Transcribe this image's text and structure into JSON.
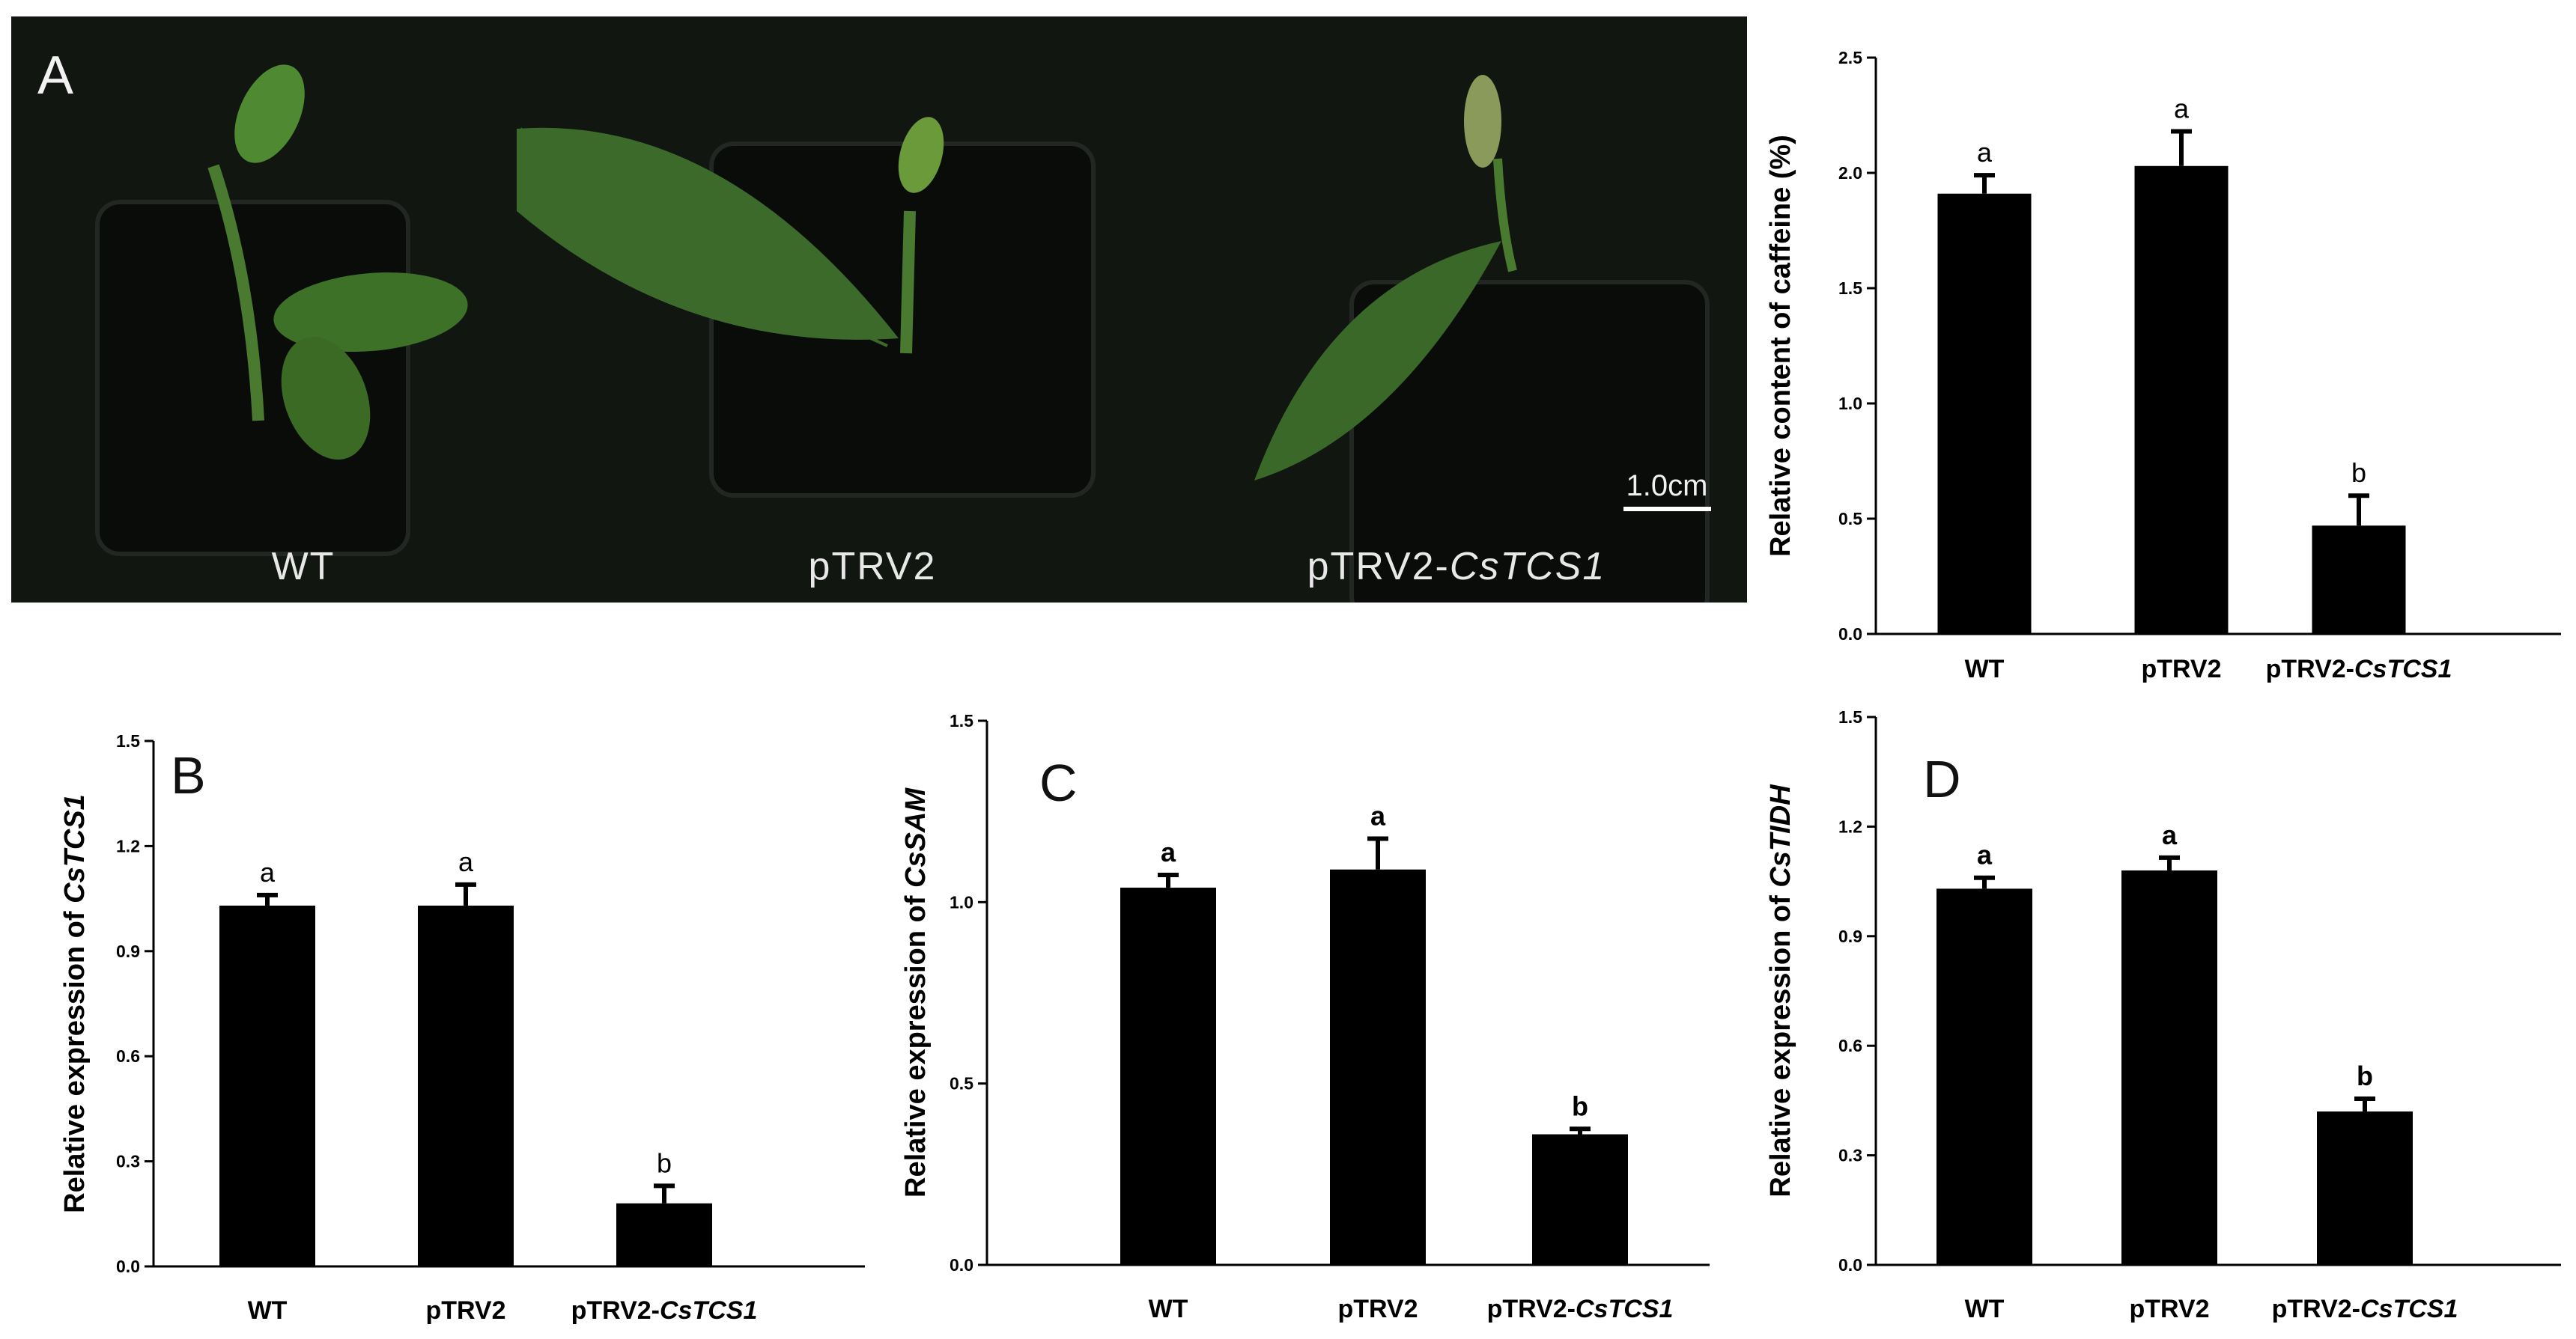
{
  "photo": {
    "letter": "A",
    "scale_bar": "1.0cm",
    "labels": [
      {
        "prefix": "WT",
        "italic": ""
      },
      {
        "prefix": "pTRV2",
        "italic": ""
      },
      {
        "prefix": "pTRV2-",
        "italic": "CsTCS1"
      }
    ]
  },
  "colors": {
    "bar": "#000000",
    "photo_bg": "#111611",
    "leaf": "#3c6a2a"
  },
  "chart_data": [
    {
      "type": "bar",
      "letter": "",
      "ylabel": {
        "prefix": "Relative content of caffeine (%)",
        "italic": ""
      },
      "categories": [
        {
          "prefix": "WT",
          "italic": ""
        },
        {
          "prefix": "pTRV2",
          "italic": ""
        },
        {
          "prefix": "pTRV2-",
          "italic": "CsTCS1"
        }
      ],
      "values": [
        1.91,
        2.03,
        0.47
      ],
      "errors": [
        0.08,
        0.15,
        0.13
      ],
      "sig": [
        "a",
        "a",
        "b"
      ],
      "sig_bold": false,
      "ylim": [
        0,
        2.5
      ],
      "ticks": [
        "0.0",
        "0.5",
        "1.0",
        "1.5",
        "2.0",
        "2.5"
      ]
    },
    {
      "type": "bar",
      "letter": "B",
      "ylabel": {
        "prefix": "Relative expression of ",
        "italic": "CsTCS1"
      },
      "categories": [
        {
          "prefix": "WT",
          "italic": ""
        },
        {
          "prefix": "pTRV2",
          "italic": ""
        },
        {
          "prefix": "pTRV2-",
          "italic": "CsTCS1"
        }
      ],
      "values": [
        1.03,
        1.03,
        0.18
      ],
      "errors": [
        0.03,
        0.06,
        0.05
      ],
      "sig": [
        "a",
        "a",
        "b"
      ],
      "sig_bold": false,
      "ylim": [
        0,
        1.5
      ],
      "ticks": [
        "0.0",
        "0.3",
        "0.6",
        "0.9",
        "1.2",
        "1.5"
      ]
    },
    {
      "type": "bar",
      "letter": "C",
      "ylabel": {
        "prefix": "Relative expression of ",
        "italic": "CsSAM"
      },
      "categories": [
        {
          "prefix": "WT",
          "italic": ""
        },
        {
          "prefix": "pTRV2",
          "italic": ""
        },
        {
          "prefix": "pTRV2-",
          "italic": "CsTCS1"
        }
      ],
      "values": [
        1.04,
        1.09,
        0.36
      ],
      "errors": [
        0.035,
        0.085,
        0.015
      ],
      "sig": [
        "a",
        "a",
        "b"
      ],
      "sig_bold": true,
      "ylim": [
        0,
        1.5
      ],
      "ticks": [
        "0.0",
        "0.5",
        "1.0",
        "1.5"
      ]
    },
    {
      "type": "bar",
      "letter": "D",
      "ylabel": {
        "prefix": "Relative expression of ",
        "italic": "CsTIDH"
      },
      "categories": [
        {
          "prefix": "WT",
          "italic": ""
        },
        {
          "prefix": "pTRV2",
          "italic": ""
        },
        {
          "prefix": "pTRV2-",
          "italic": "CsTCS1"
        }
      ],
      "values": [
        1.03,
        1.08,
        0.42
      ],
      "errors": [
        0.03,
        0.035,
        0.035
      ],
      "sig": [
        "a",
        "a",
        "b"
      ],
      "sig_bold": true,
      "ylim": [
        0,
        1.5
      ],
      "ticks": [
        "0.0",
        "0.3",
        "0.6",
        "0.9",
        "1.2",
        "1.5"
      ]
    }
  ]
}
